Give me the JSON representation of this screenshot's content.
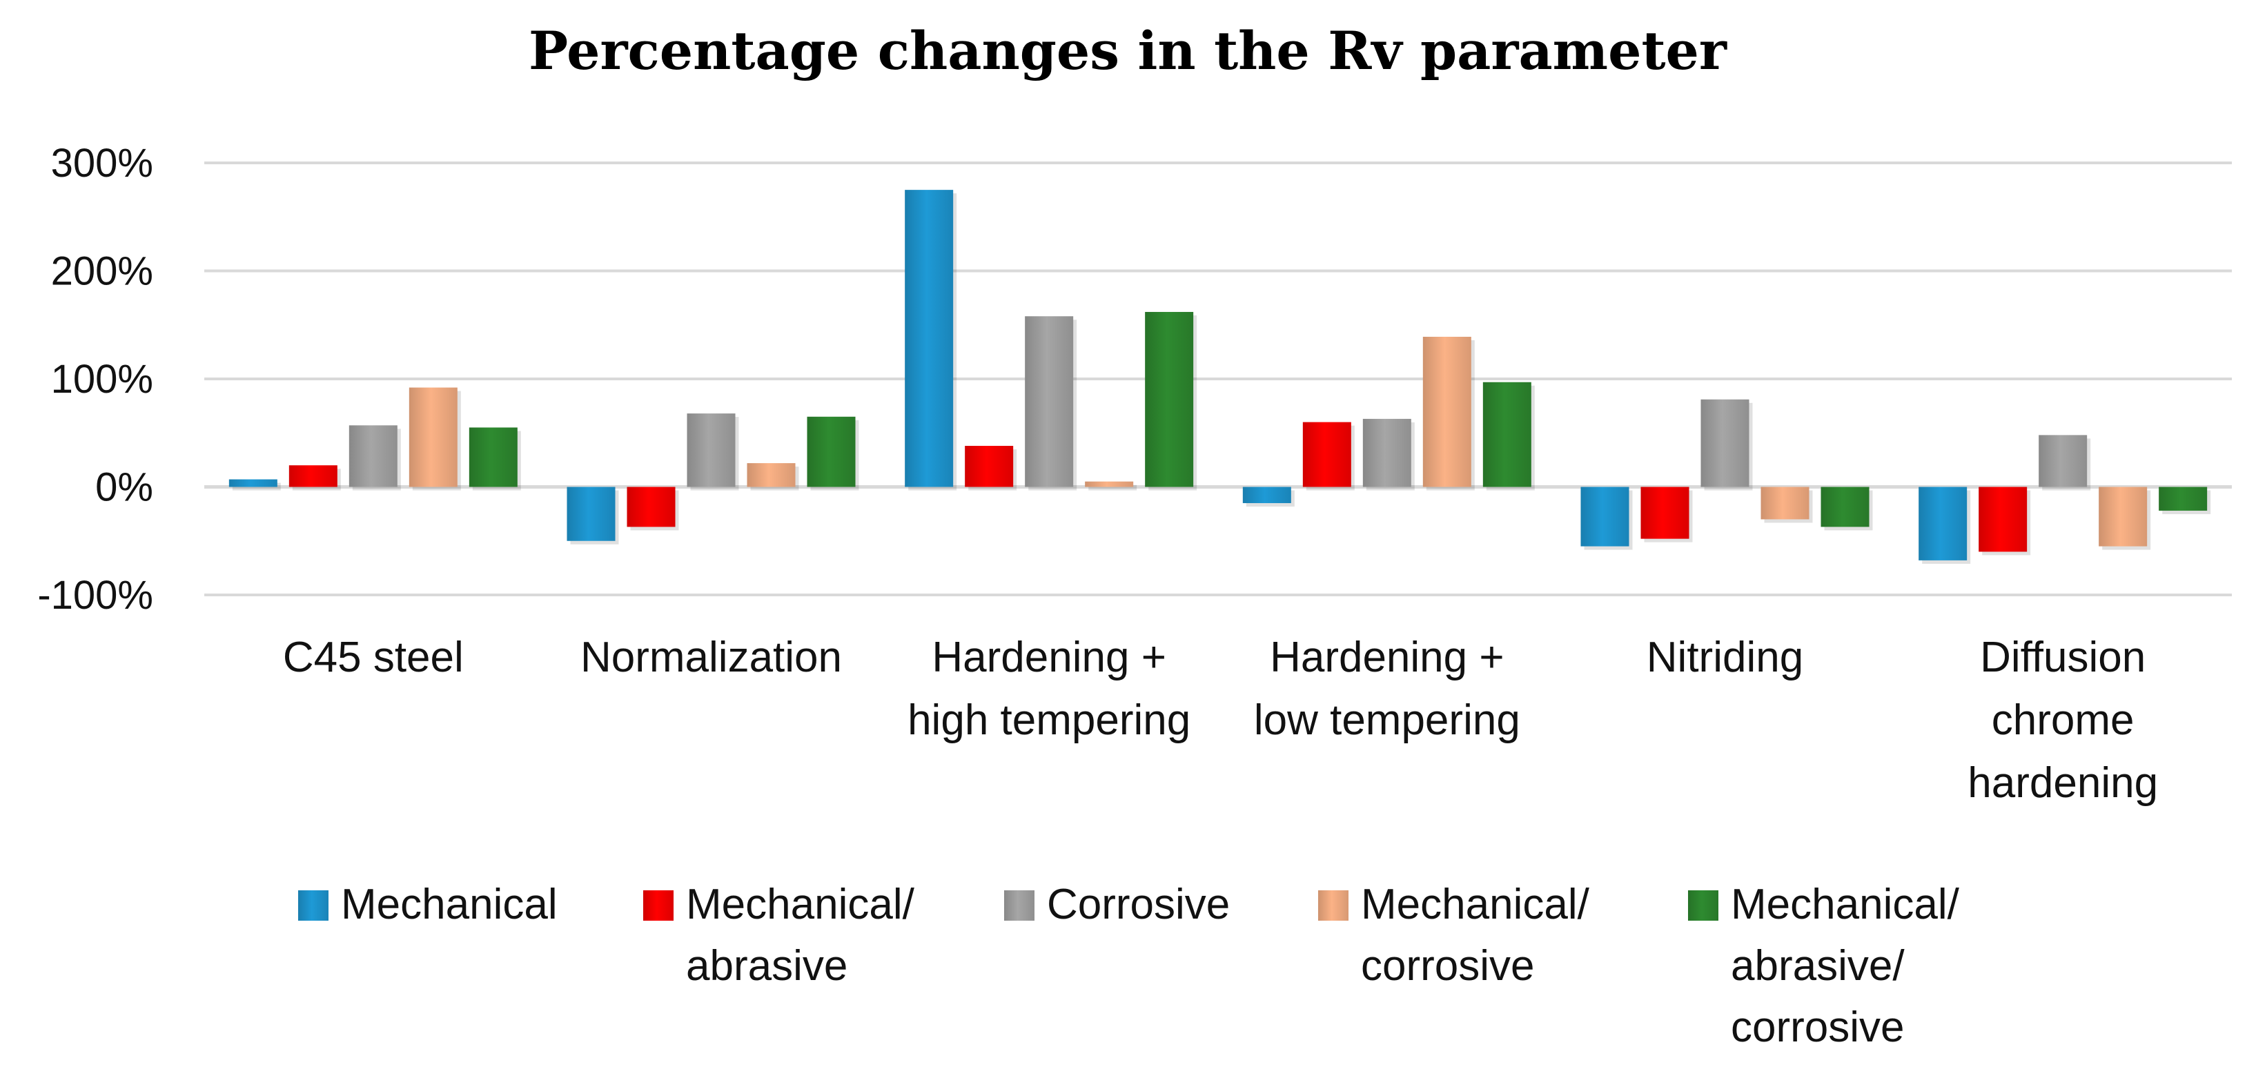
{
  "chart_data": {
    "type": "bar",
    "title": "Percentage changes in the Rv parameter",
    "xlabel": "",
    "ylabel": "",
    "ylim": [
      -100,
      300
    ],
    "yticks": [
      -100,
      0,
      100,
      200,
      300
    ],
    "ytick_labels": [
      "-100%",
      "0%",
      "100%",
      "200%",
      "300%"
    ],
    "grid": true,
    "legend_position": "bottom",
    "categories": [
      "C45 steel",
      "Normalization",
      "Hardening + high tempering",
      "Hardening + low tempering",
      "Nitriding",
      "Diffusion chrome hardening"
    ],
    "category_lines": [
      [
        "C45 steel"
      ],
      [
        "Normalization"
      ],
      [
        "Hardening +",
        "high tempering"
      ],
      [
        "Hardening +",
        "low tempering"
      ],
      [
        "Nitriding"
      ],
      [
        "Diffusion",
        "chrome",
        "hardening"
      ]
    ],
    "series": [
      {
        "name": "Mechanical",
        "legend_lines": [
          "Mechanical"
        ],
        "color": "#1e9ad6",
        "values": [
          7,
          -50,
          275,
          -15,
          -55,
          -68
        ]
      },
      {
        "name": "Mechanical/ abrasive",
        "legend_lines": [
          "Mechanical/",
          "abrasive"
        ],
        "color": "#ff0000",
        "values": [
          20,
          -37,
          38,
          60,
          -48,
          -60
        ]
      },
      {
        "name": "Corrosive",
        "legend_lines": [
          "Corrosive"
        ],
        "color": "#a6a6a6",
        "values": [
          57,
          68,
          158,
          63,
          81,
          48
        ]
      },
      {
        "name": "Mechanical/ corrosive",
        "legend_lines": [
          "Mechanical/",
          "corrosive"
        ],
        "color": "#fbb286",
        "values": [
          92,
          22,
          5,
          139,
          -30,
          -55
        ]
      },
      {
        "name": "Mechanical/ abrasive/ corrosive",
        "legend_lines": [
          "Mechanical/",
          "abrasive/",
          "corrosive"
        ],
        "color": "#2e8b30",
        "values": [
          55,
          65,
          162,
          97,
          -37,
          -22
        ]
      }
    ]
  }
}
